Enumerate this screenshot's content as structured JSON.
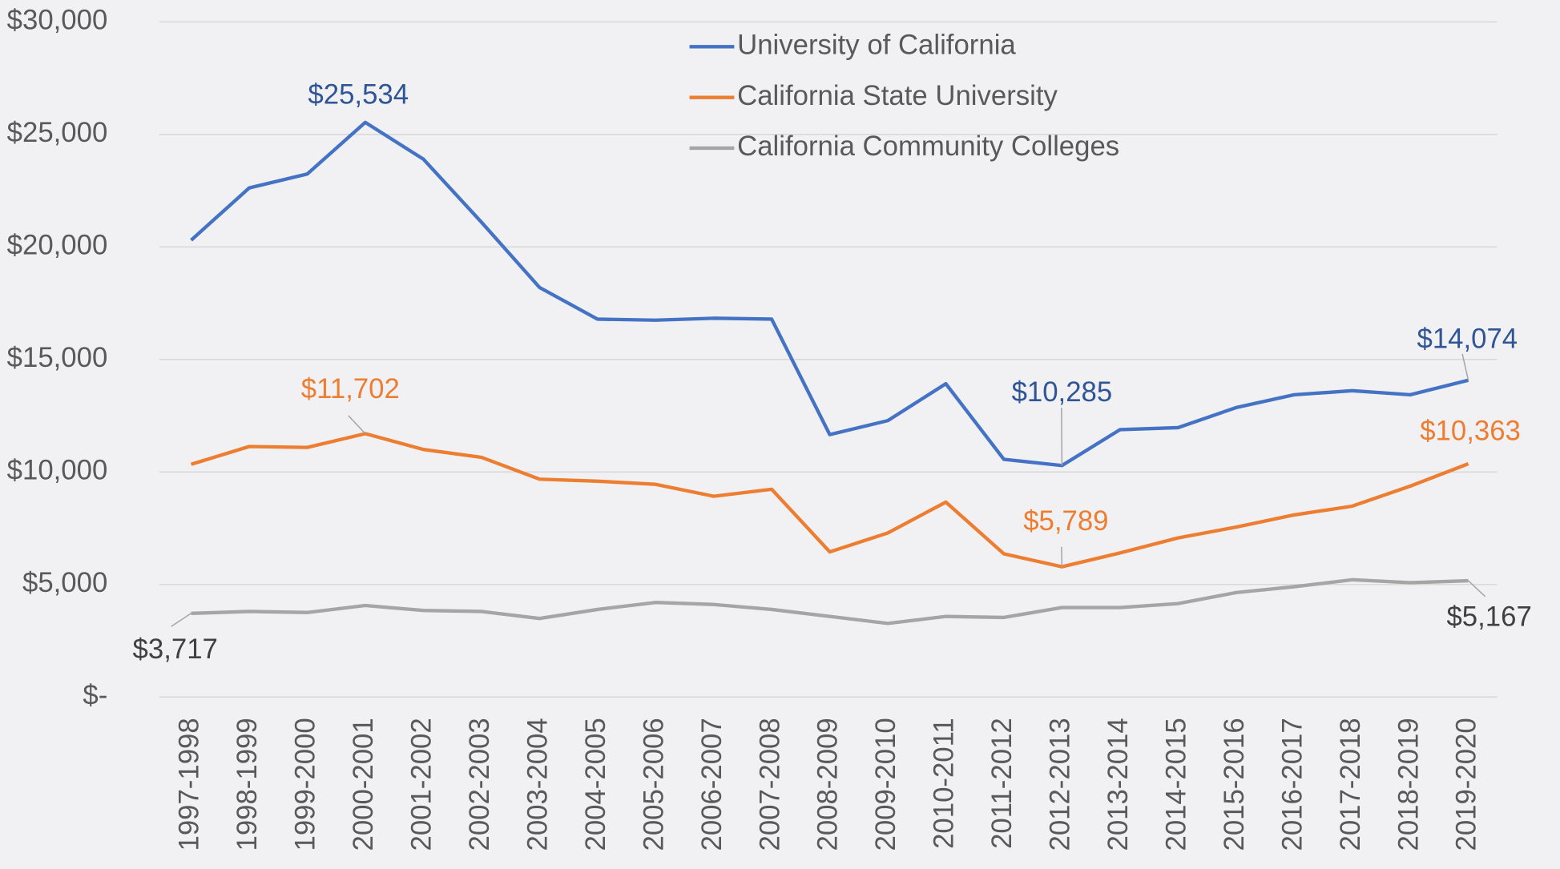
{
  "chart_data": {
    "type": "line",
    "categories": [
      "1997-1998",
      "1998-1999",
      "1999-2000",
      "2000-2001",
      "2001-2002",
      "2002-2003",
      "2003-2004",
      "2004-2005",
      "2005-2006",
      "2006-2007",
      "2007-2008",
      "2008-2009",
      "2009-2010",
      "2010-2011",
      "2011-2012",
      "2012-2013",
      "2013-2014",
      "2014-2015",
      "2015-2016",
      "2016-2017",
      "2017-2018",
      "2018-2019",
      "2019-2020"
    ],
    "series": [
      {
        "name": "University of California",
        "color": "#4472c4",
        "values": [
          20300,
          22620,
          23240,
          25534,
          23900,
          21100,
          18200,
          16790,
          16745,
          16830,
          16790,
          11660,
          12280,
          13920,
          10560,
          10285,
          11880,
          11970,
          12860,
          13430,
          13610,
          13430,
          14074
        ],
        "value_labels": [
          null,
          null,
          null,
          "$25,534",
          null,
          null,
          null,
          null,
          null,
          null,
          null,
          null,
          null,
          null,
          null,
          "$10,285",
          null,
          null,
          null,
          null,
          null,
          null,
          "$14,074"
        ]
      },
      {
        "name": "California State University",
        "color": "#ed7d31",
        "values": [
          10340,
          11130,
          11090,
          11702,
          11000,
          10650,
          9680,
          9590,
          9450,
          8920,
          9230,
          6450,
          7290,
          8660,
          6360,
          5789,
          6400,
          7070,
          7550,
          8090,
          8480,
          9370,
          10363
        ],
        "value_labels": [
          null,
          null,
          null,
          "$11,702",
          null,
          null,
          null,
          null,
          null,
          null,
          null,
          null,
          null,
          null,
          null,
          "$5,789",
          null,
          null,
          null,
          null,
          null,
          null,
          "$10,363"
        ]
      },
      {
        "name": "California Community Colleges",
        "color": "#a5a5a5",
        "values": [
          3717,
          3800,
          3755,
          4065,
          3845,
          3800,
          3490,
          3890,
          4200,
          4110,
          3890,
          3580,
          3270,
          3580,
          3535,
          3975,
          3975,
          4150,
          4640,
          4900,
          5210,
          5080,
          5167
        ],
        "value_labels": [
          "$3,717",
          null,
          null,
          null,
          null,
          null,
          null,
          null,
          null,
          null,
          null,
          null,
          null,
          null,
          null,
          null,
          null,
          null,
          null,
          null,
          null,
          null,
          "$5,167"
        ]
      }
    ],
    "ylim": [
      0,
      30000
    ],
    "yticks": [
      {
        "value": 0,
        "label": "$-"
      },
      {
        "value": 5000,
        "label": "$5,000"
      },
      {
        "value": 10000,
        "label": "$10,000"
      },
      {
        "value": 15000,
        "label": "$15,000"
      },
      {
        "value": 20000,
        "label": "$20,000"
      },
      {
        "value": 25000,
        "label": "$25,000"
      },
      {
        "value": 30000,
        "label": "$30,000"
      }
    ],
    "grid": true,
    "legend": "top"
  }
}
